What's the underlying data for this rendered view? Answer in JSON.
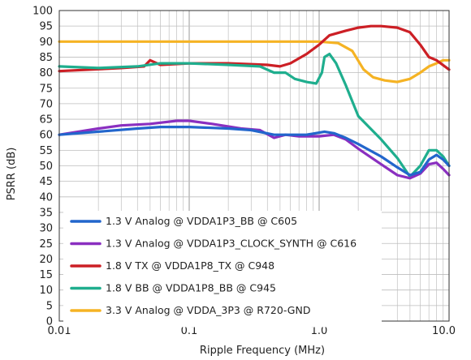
{
  "chart_data": {
    "type": "line",
    "xlabel": "Ripple Frequency (MHz)",
    "ylabel": "PSRR (dB)",
    "x_scale": "log",
    "xlim": [
      0.01,
      10.0
    ],
    "ylim": [
      0,
      100
    ],
    "x_tick_labels": [
      "0.01",
      "0.1",
      "1.0",
      "10.0"
    ],
    "x_ticks": [
      0.01,
      0.1,
      1.0,
      10.0
    ],
    "y_ticks": [
      0,
      5,
      10,
      15,
      20,
      25,
      30,
      35,
      40,
      45,
      50,
      55,
      60,
      65,
      70,
      75,
      80,
      85,
      90,
      95,
      100
    ],
    "y_tick_labels": [
      "0",
      "5",
      "10",
      "15",
      "20",
      "25",
      "30",
      "35",
      "40",
      "45",
      "50",
      "55",
      "60",
      "65",
      "70",
      "75",
      "80",
      "85",
      "90",
      "95",
      "100"
    ],
    "grid": true,
    "legend_position": "lower-left",
    "series": [
      {
        "name": "1.3 V Analog @ VDDA1P3_BB @ C605",
        "color": "#2266cc",
        "points": [
          [
            0.01,
            60
          ],
          [
            0.02,
            61
          ],
          [
            0.04,
            62
          ],
          [
            0.06,
            62.5
          ],
          [
            0.1,
            62.5
          ],
          [
            0.2,
            62
          ],
          [
            0.3,
            61.5
          ],
          [
            0.45,
            60
          ],
          [
            0.6,
            60
          ],
          [
            0.8,
            60
          ],
          [
            1.1,
            61
          ],
          [
            1.3,
            60.5
          ],
          [
            1.6,
            59
          ],
          [
            2,
            57
          ],
          [
            3,
            53
          ],
          [
            4,
            49.5
          ],
          [
            5,
            47
          ],
          [
            6,
            48
          ],
          [
            7,
            52
          ],
          [
            8,
            53.5
          ],
          [
            9,
            52
          ],
          [
            10,
            50
          ]
        ]
      },
      {
        "name": "1.3 V Analog @ VDDA1P3_CLOCK_SYNTH @ C616",
        "color": "#8a2fc0",
        "points": [
          [
            0.01,
            60
          ],
          [
            0.02,
            62
          ],
          [
            0.03,
            63
          ],
          [
            0.05,
            63.5
          ],
          [
            0.08,
            64.5
          ],
          [
            0.1,
            64.5
          ],
          [
            0.15,
            63.5
          ],
          [
            0.25,
            62
          ],
          [
            0.35,
            61.5
          ],
          [
            0.45,
            59
          ],
          [
            0.55,
            60
          ],
          [
            0.7,
            59.5
          ],
          [
            1.0,
            59.5
          ],
          [
            1.3,
            60
          ],
          [
            1.6,
            58.5
          ],
          [
            2,
            55.5
          ],
          [
            3,
            50.5
          ],
          [
            4,
            47
          ],
          [
            5,
            46
          ],
          [
            6,
            47.5
          ],
          [
            7,
            50.5
          ],
          [
            8,
            51
          ],
          [
            9,
            49
          ],
          [
            10,
            47
          ]
        ]
      },
      {
        "name": "1.8 V TX @ VDDA1P8_TX @ C948",
        "color": "#cc1f25",
        "points": [
          [
            0.01,
            80.5
          ],
          [
            0.03,
            81.5
          ],
          [
            0.045,
            82
          ],
          [
            0.05,
            84
          ],
          [
            0.06,
            82.5
          ],
          [
            0.1,
            83
          ],
          [
            0.2,
            83
          ],
          [
            0.4,
            82.5
          ],
          [
            0.5,
            82
          ],
          [
            0.6,
            83
          ],
          [
            0.8,
            86
          ],
          [
            1.0,
            89
          ],
          [
            1.2,
            92
          ],
          [
            1.6,
            93.5
          ],
          [
            2,
            94.5
          ],
          [
            2.5,
            95
          ],
          [
            3,
            95
          ],
          [
            4,
            94.5
          ],
          [
            5,
            93
          ],
          [
            6,
            89
          ],
          [
            7,
            85
          ],
          [
            8,
            84
          ],
          [
            10,
            81
          ]
        ]
      },
      {
        "name": "1.8 V BB @ VDDA1P8_BB @ C945",
        "color": "#1fae8e",
        "points": [
          [
            0.01,
            82
          ],
          [
            0.02,
            81.5
          ],
          [
            0.04,
            82
          ],
          [
            0.06,
            83
          ],
          [
            0.1,
            83
          ],
          [
            0.2,
            82.5
          ],
          [
            0.35,
            82
          ],
          [
            0.45,
            80
          ],
          [
            0.55,
            80
          ],
          [
            0.65,
            78
          ],
          [
            0.8,
            77
          ],
          [
            0.95,
            76.5
          ],
          [
            1.05,
            80
          ],
          [
            1.1,
            85
          ],
          [
            1.2,
            86
          ],
          [
            1.35,
            83
          ],
          [
            1.6,
            76
          ],
          [
            2,
            66
          ],
          [
            3,
            58.5
          ],
          [
            4,
            52.5
          ],
          [
            5,
            46.5
          ],
          [
            6,
            50
          ],
          [
            7,
            55
          ],
          [
            8,
            55
          ],
          [
            9,
            53
          ],
          [
            10,
            50
          ]
        ]
      },
      {
        "name": "3.3 V Analog @ VDDA_3P3 @ R720-GND",
        "color": "#f5b324",
        "points": [
          [
            0.01,
            90
          ],
          [
            0.1,
            90
          ],
          [
            0.5,
            90
          ],
          [
            1.0,
            90
          ],
          [
            1.4,
            89.5
          ],
          [
            1.8,
            87
          ],
          [
            2.2,
            81
          ],
          [
            2.6,
            78.5
          ],
          [
            3.2,
            77.5
          ],
          [
            4,
            77
          ],
          [
            5,
            78
          ],
          [
            6,
            80
          ],
          [
            7,
            82
          ],
          [
            8,
            83
          ],
          [
            9,
            84
          ],
          [
            10,
            84
          ]
        ]
      }
    ]
  }
}
